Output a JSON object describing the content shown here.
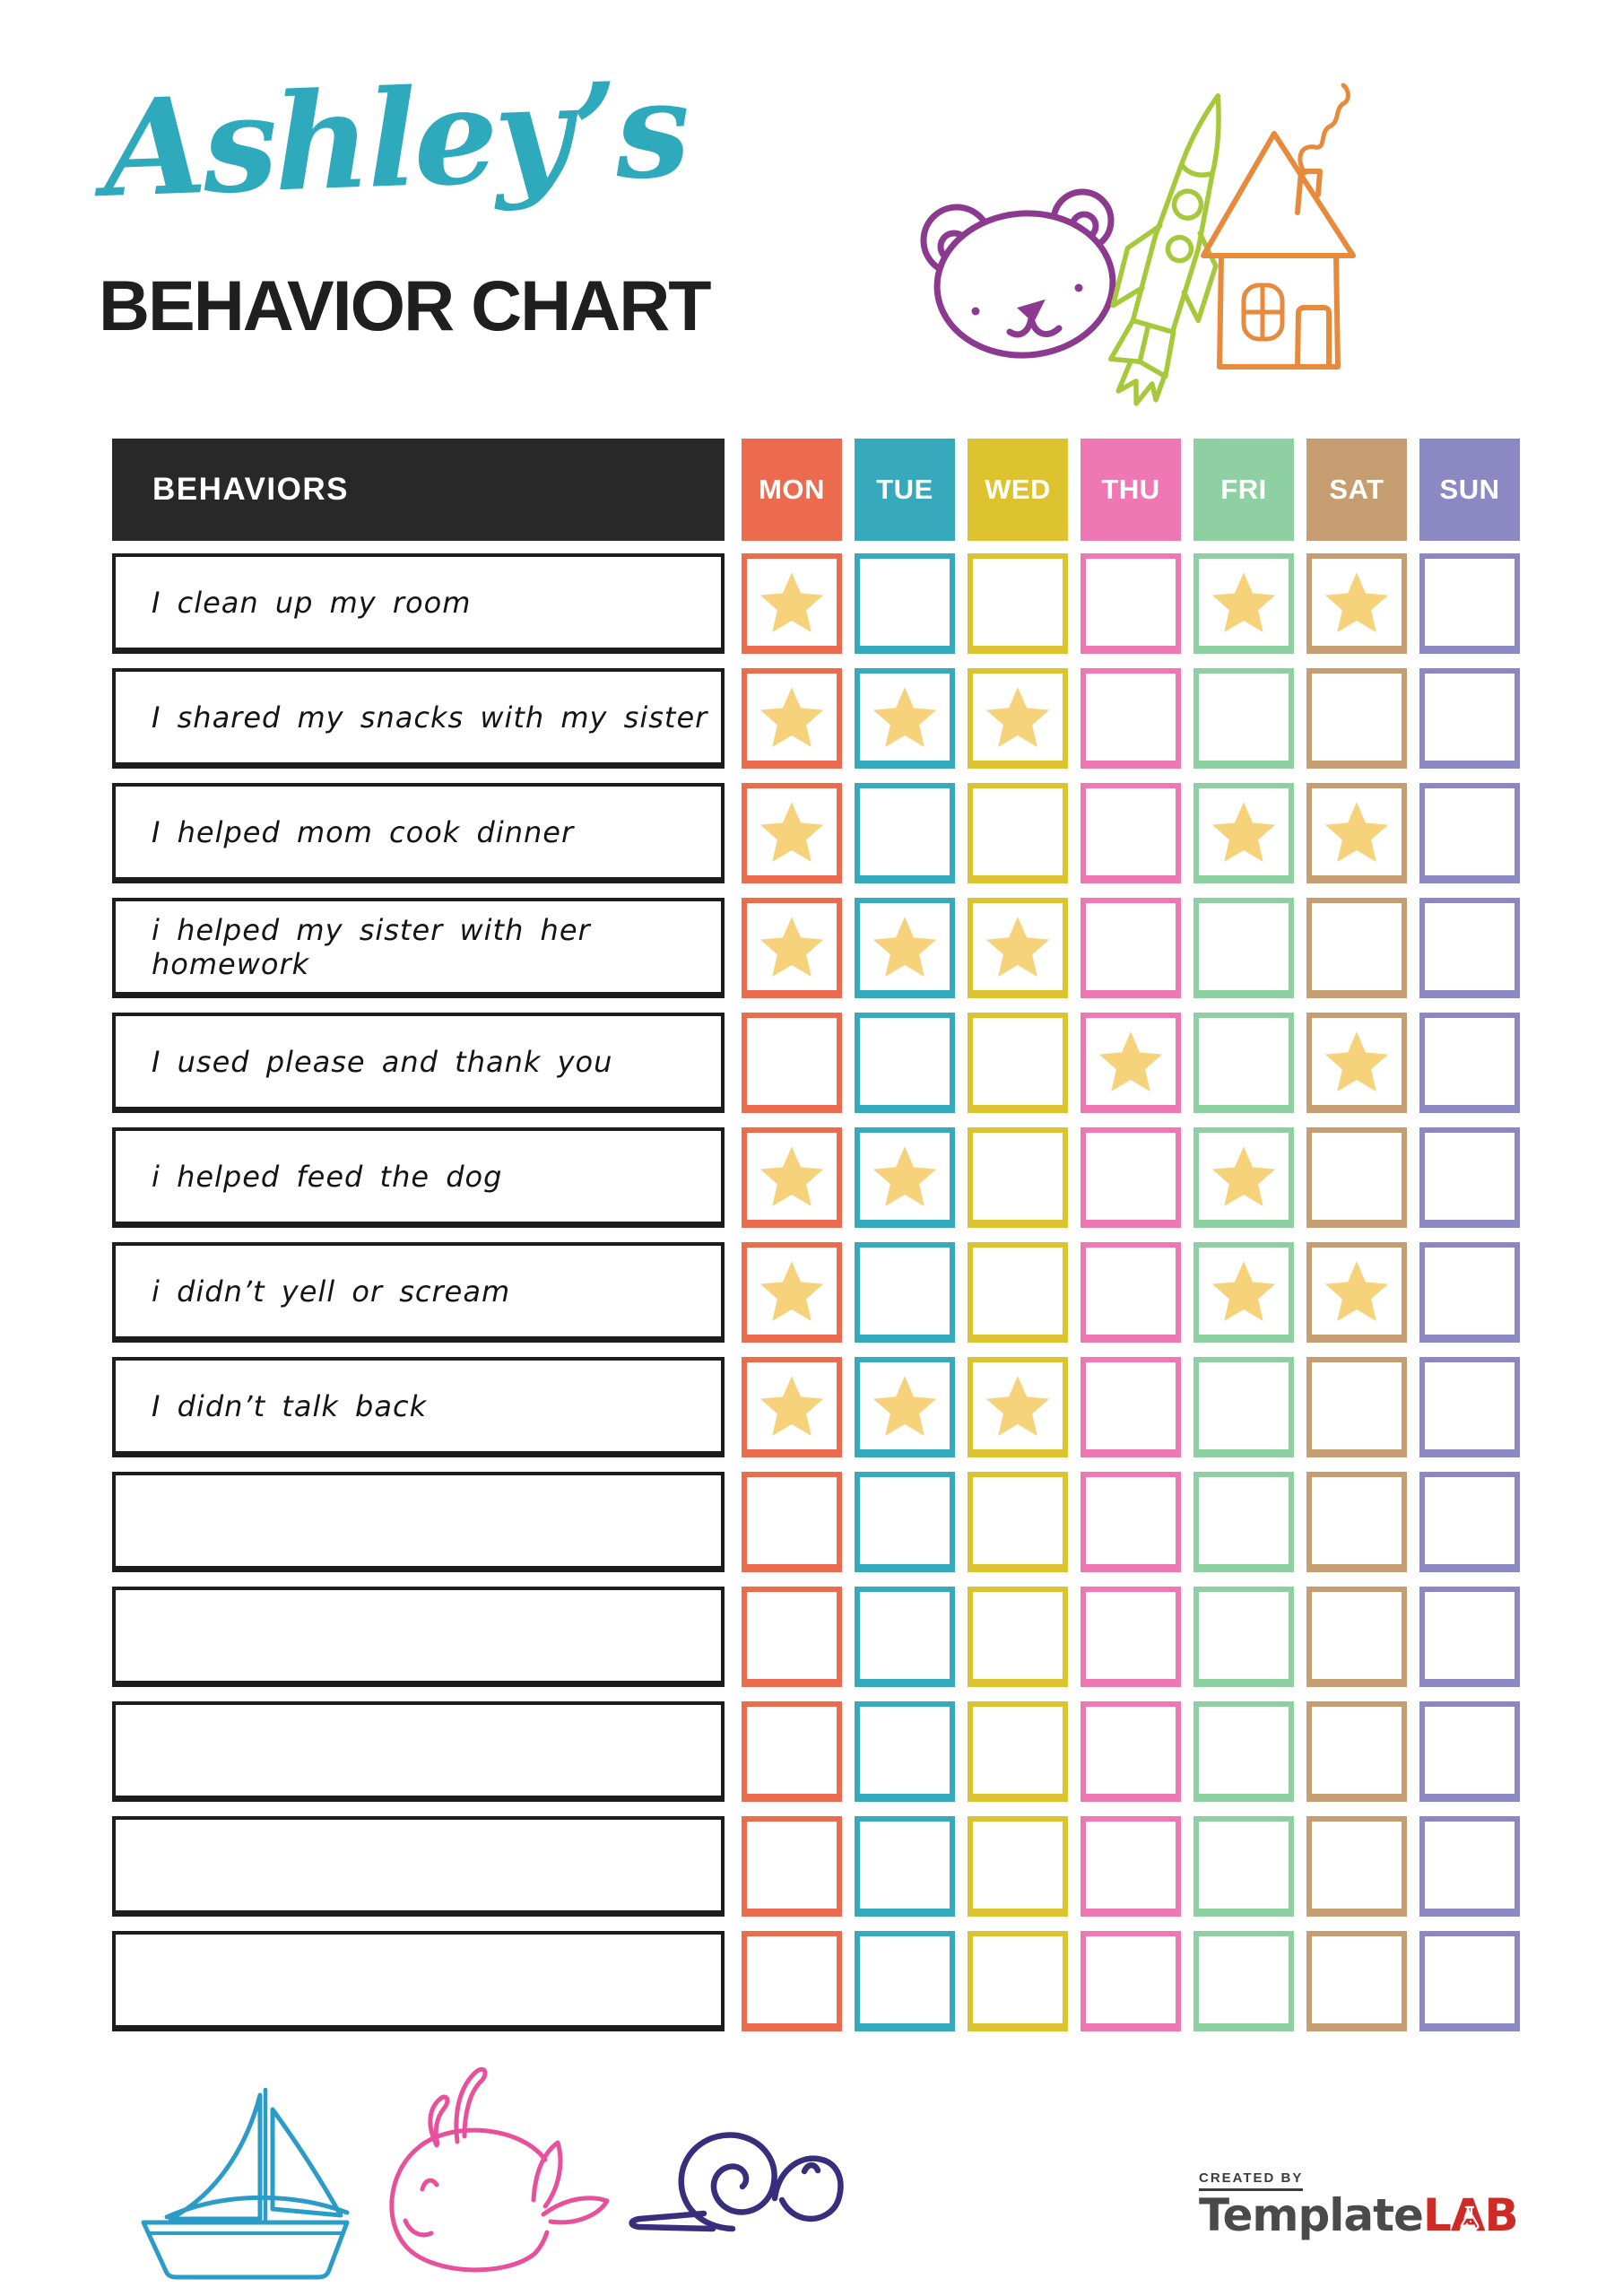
{
  "header": {
    "name": "Ashley’s",
    "title": "BEHAVIOR CHART"
  },
  "icons": {
    "top": [
      "bear-doodle",
      "rocket-doodle",
      "house-doodle"
    ],
    "bottom": [
      "sailboat-doodle",
      "whale-doodle",
      "snail-doodle"
    ]
  },
  "table": {
    "behaviors_header": "BEHAVIORS",
    "days": [
      "MON",
      "TUE",
      "WED",
      "THU",
      "FRI",
      "SAT",
      "SUN"
    ],
    "day_colors": [
      "#ec6a4e",
      "#36a9bd",
      "#dcc32f",
      "#ee77b4",
      "#8ed0a2",
      "#c59d70",
      "#8b88c4"
    ],
    "header_bg": "#282828",
    "star_color": "#f6d27b",
    "rows": [
      {
        "behavior": "I clean up my room",
        "stars": [
          1,
          0,
          0,
          0,
          1,
          1,
          0
        ]
      },
      {
        "behavior": "I shared my snacks with my sister",
        "stars": [
          1,
          1,
          1,
          0,
          0,
          0,
          0
        ]
      },
      {
        "behavior": "I helped mom cook dinner",
        "stars": [
          1,
          0,
          0,
          0,
          1,
          1,
          0
        ]
      },
      {
        "behavior": "i helped my sister with her homework",
        "stars": [
          1,
          1,
          1,
          0,
          0,
          0,
          0
        ]
      },
      {
        "behavior": "I used please and thank you",
        "stars": [
          0,
          0,
          0,
          1,
          0,
          1,
          0
        ]
      },
      {
        "behavior": "i helped feed the dog",
        "stars": [
          1,
          1,
          0,
          0,
          1,
          0,
          0
        ]
      },
      {
        "behavior": "i didn’t yell or scream",
        "stars": [
          1,
          0,
          0,
          0,
          1,
          1,
          0
        ]
      },
      {
        "behavior": "I didn’t talk back",
        "stars": [
          1,
          1,
          1,
          0,
          0,
          0,
          0
        ]
      },
      {
        "behavior": "",
        "stars": [
          0,
          0,
          0,
          0,
          0,
          0,
          0
        ]
      },
      {
        "behavior": "",
        "stars": [
          0,
          0,
          0,
          0,
          0,
          0,
          0
        ]
      },
      {
        "behavior": "",
        "stars": [
          0,
          0,
          0,
          0,
          0,
          0,
          0
        ]
      },
      {
        "behavior": "",
        "stars": [
          0,
          0,
          0,
          0,
          0,
          0,
          0
        ]
      },
      {
        "behavior": "",
        "stars": [
          0,
          0,
          0,
          0,
          0,
          0,
          0
        ]
      }
    ]
  },
  "footer": {
    "created_by": "CREATED BY",
    "brand_part1": "Template",
    "brand_part2": "LAB"
  },
  "colors": {
    "title_script": "#2faabd",
    "title_main": "#1f1f1f",
    "bear": "#8b3a8f",
    "rocket": "#a6c93c",
    "house": "#e78a3c",
    "boat": "#2b9bc7",
    "whale": "#e8509b",
    "snail": "#372f7d",
    "brand_dark": "#4a4a4a",
    "brand_red": "#cf2b26"
  }
}
